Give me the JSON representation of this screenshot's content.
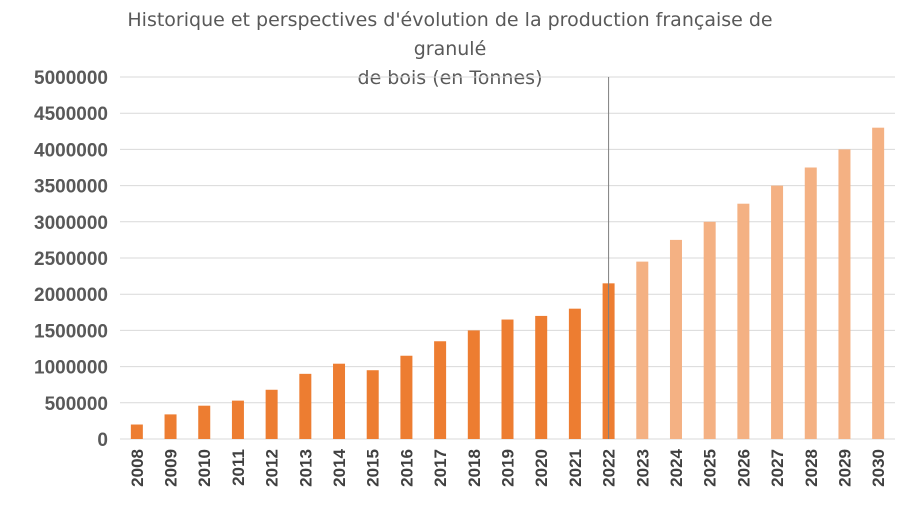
{
  "chart_data": {
    "type": "bar",
    "title": "Historique et perspectives d'évolution de la production française de granulé de bois (en Tonnes)",
    "title_lines": [
      "Historique et perspectives d'évolution de la production française de granulé",
      "de bois (en Tonnes)"
    ],
    "xlabel": "",
    "ylabel": "",
    "ylim": [
      0,
      5000000
    ],
    "yticks": [
      "5000000",
      "4500000",
      "4000000",
      "3500000",
      "3000000",
      "2500000",
      "2000000",
      "1500000",
      "1000000",
      "500000",
      "0"
    ],
    "grid": true,
    "legend": "none",
    "categories": [
      "2008",
      "2009",
      "2010",
      "2011",
      "2012",
      "2013",
      "2014",
      "2015",
      "2016",
      "2017",
      "2018",
      "2019",
      "2020",
      "2021",
      "2022",
      "2023",
      "2024",
      "2025",
      "2026",
      "2027",
      "2028",
      "2029",
      "2030"
    ],
    "values": [
      200000,
      340000,
      460000,
      530000,
      680000,
      900000,
      1040000,
      950000,
      1150000,
      1350000,
      1500000,
      1650000,
      1700000,
      1800000,
      2150000,
      2450000,
      2750000,
      3000000,
      3250000,
      3500000,
      3750000,
      4000000,
      4300000
    ],
    "projection_start": "2023",
    "divider_after": "2022",
    "colors": {
      "historical": "#ed7d31",
      "projection": "#f4b183",
      "grid": "#d9d9d9",
      "divider": "#7f7f7f"
    }
  }
}
